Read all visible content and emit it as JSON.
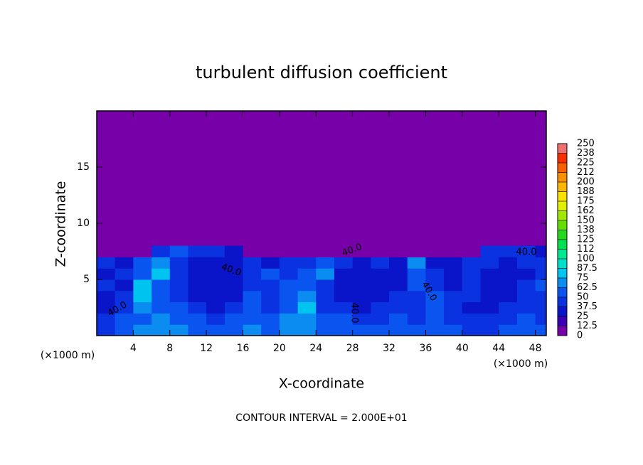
{
  "chart_data": {
    "type": "heatmap",
    "title": "turbulent diffusion coefficient",
    "x_label": "X-coordinate",
    "y_label": "Z-coordinate",
    "x_unit": "(×1000 m)",
    "x_unit_right": "(×1000 m)",
    "annotation": "CONTOUR INTERVAL = 2.000E+01",
    "contour_labels": [
      "40.0",
      "40.0",
      "40.0",
      "40.0",
      "40.0",
      "40.0"
    ],
    "xlim": [
      0,
      49.2
    ],
    "ylim": [
      0,
      20
    ],
    "xticks": [
      4,
      8,
      12,
      16,
      20,
      24,
      28,
      32,
      36,
      40,
      44,
      48
    ],
    "yticks": [
      5,
      10,
      15
    ],
    "x": [
      1,
      3,
      5,
      7,
      9,
      11,
      13,
      15,
      17,
      19,
      21,
      23,
      25,
      27,
      29,
      31,
      33,
      35,
      37,
      39,
      41,
      43,
      45,
      47,
      49
    ],
    "z": [
      0.5,
      1.5,
      2.5,
      3.5,
      4.5,
      5.5,
      6.5,
      7.5
    ],
    "z_values": [
      [
        45,
        60,
        65,
        70,
        65,
        60,
        55,
        60,
        65,
        60,
        70,
        65,
        60,
        55,
        55,
        50,
        55,
        50,
        55,
        50,
        45,
        45,
        50,
        55,
        50
      ],
      [
        40,
        55,
        60,
        65,
        60,
        50,
        45,
        50,
        60,
        55,
        65,
        70,
        55,
        50,
        45,
        45,
        50,
        45,
        50,
        45,
        40,
        40,
        45,
        50,
        45
      ],
      [
        35,
        45,
        70,
        55,
        50,
        45,
        35,
        40,
        55,
        45,
        60,
        75,
        45,
        40,
        35,
        40,
        45,
        40,
        55,
        45,
        35,
        35,
        40,
        45,
        40
      ],
      [
        30,
        40,
        80,
        50,
        45,
        35,
        30,
        35,
        50,
        40,
        55,
        70,
        40,
        35,
        30,
        35,
        40,
        45,
        50,
        40,
        40,
        30,
        35,
        45,
        45
      ],
      [
        40,
        35,
        75,
        60,
        40,
        30,
        30,
        35,
        40,
        45,
        60,
        60,
        45,
        30,
        30,
        30,
        35,
        55,
        40,
        35,
        45,
        35,
        30,
        40,
        50
      ],
      [
        35,
        45,
        60,
        75,
        45,
        30,
        30,
        35,
        40,
        60,
        45,
        55,
        65,
        35,
        30,
        30,
        30,
        60,
        45,
        35,
        40,
        35,
        30,
        35,
        45
      ],
      [
        40,
        35,
        55,
        70,
        45,
        35,
        30,
        35,
        40,
        35,
        40,
        45,
        60,
        40,
        35,
        40,
        35,
        70,
        35,
        30,
        40,
        40,
        35,
        40,
        40
      ],
      [
        0,
        0,
        0,
        40,
        60,
        45,
        40,
        35,
        0,
        0,
        0,
        0,
        0,
        0,
        0,
        0,
        0,
        0,
        0,
        0,
        0,
        45,
        45,
        40,
        35
      ]
    ],
    "colorbar_ticks": [
      0,
      12.5,
      25,
      37.5,
      50,
      62.5,
      75,
      87.5,
      100,
      112,
      125,
      138,
      150,
      162,
      175,
      188,
      200,
      212,
      225,
      238,
      250
    ],
    "colorbar_colors": [
      "#7800a8",
      "#3c00b4",
      "#0a14c8",
      "#0a32e0",
      "#0a55f0",
      "#0a8cf0",
      "#00c4f0",
      "#00e0c8",
      "#00e890",
      "#00e050",
      "#28d820",
      "#64e000",
      "#a0e800",
      "#e0f000",
      "#f8e000",
      "#f8b800",
      "#f89000",
      "#f86000",
      "#f83000",
      "#f07070"
    ]
  }
}
